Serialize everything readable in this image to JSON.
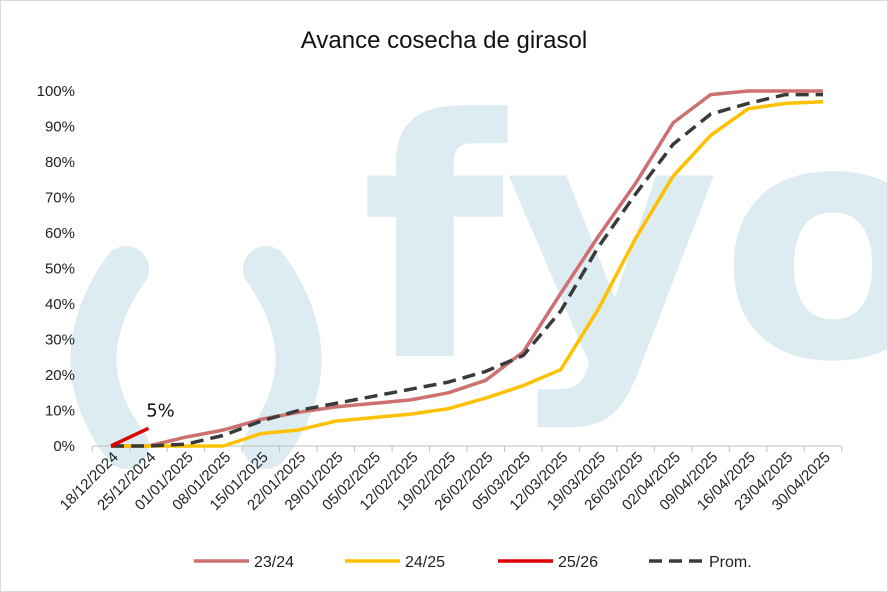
{
  "chart_data": {
    "type": "line",
    "title": "Avance cosecha de girasol",
    "xlabel": "",
    "ylabel": "",
    "ylim": [
      0,
      100
    ],
    "y_ticks": [
      "0%",
      "10%",
      "20%",
      "30%",
      "40%",
      "50%",
      "60%",
      "70%",
      "80%",
      "90%",
      "100%"
    ],
    "categories": [
      "18/12/2024",
      "25/12/2024",
      "01/01/2025",
      "08/01/2025",
      "15/01/2025",
      "22/01/2025",
      "29/01/2025",
      "05/02/2025",
      "12/02/2025",
      "19/02/2025",
      "26/02/2025",
      "05/03/2025",
      "12/03/2025",
      "19/03/2025",
      "26/03/2025",
      "02/04/2025",
      "09/04/2025",
      "16/04/2025",
      "23/04/2025",
      "30/04/2025"
    ],
    "series": [
      {
        "name": "23/24",
        "color": "#cd7070",
        "dash": "solid",
        "values": [
          0,
          0,
          2.5,
          4.5,
          7.5,
          9.5,
          11,
          12,
          13,
          15,
          18.5,
          26.5,
          43,
          59,
          74,
          91,
          99,
          100,
          100,
          100
        ]
      },
      {
        "name": "24/25",
        "color": "#ffc000",
        "dash": "solid",
        "values": [
          0,
          0,
          0,
          0,
          3.5,
          4.5,
          7,
          8,
          9,
          10.5,
          13.5,
          17,
          21.5,
          38.5,
          58.5,
          76,
          87.5,
          95,
          96.5,
          97
        ]
      },
      {
        "name": "25/26",
        "color": "#e00000",
        "dash": "solid",
        "values": [
          0,
          5,
          null,
          null,
          null,
          null,
          null,
          null,
          null,
          null,
          null,
          null,
          null,
          null,
          null,
          null,
          null,
          null,
          null,
          null
        ]
      },
      {
        "name": "Prom.",
        "color": "#3a3a3a",
        "dash": "dashed",
        "values": [
          0,
          0,
          0.5,
          3,
          7,
          10,
          12,
          14,
          16,
          18,
          21,
          25.5,
          38,
          56,
          71,
          85,
          93.5,
          96.5,
          99,
          99
        ]
      }
    ],
    "annotations": [
      {
        "text": "5%",
        "series": "25/26",
        "index": 1
      }
    ],
    "legend": "bottom",
    "grid": false,
    "watermark": "fyo"
  }
}
